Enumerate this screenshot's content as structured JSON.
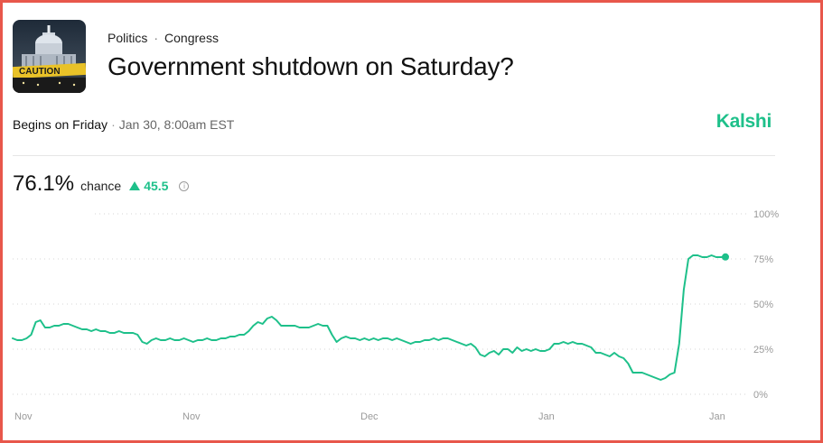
{
  "header": {
    "thumbnail_icon": "capitol-caution-image",
    "thumbnail_caption": "CAUTION",
    "breadcrumb": [
      "Politics",
      "Congress"
    ],
    "breadcrumb_separator": "·",
    "title": "Government shutdown on Saturday?"
  },
  "meta": {
    "begins": "Begins on Friday",
    "separator": "·",
    "date": "Jan 30, 8:00am EST"
  },
  "brand": {
    "name": "Kalshi",
    "color": "#1ec08a"
  },
  "stat": {
    "value": "76.1%",
    "label": "chance",
    "delta": "45.5",
    "delta_direction": "up",
    "info_icon": "info-circle-icon"
  },
  "chart_data": {
    "type": "line",
    "series": [
      {
        "color": "#1ec08a",
        "values": [
          31,
          30,
          30,
          31,
          33,
          40,
          41,
          37,
          37,
          38,
          38,
          39,
          39,
          38,
          37,
          36,
          36,
          35,
          36,
          35,
          35,
          34,
          34,
          35,
          34,
          34,
          34,
          33,
          29,
          28,
          30,
          31,
          30,
          30,
          31,
          30,
          30,
          31,
          30,
          29,
          30,
          30,
          31,
          30,
          30,
          31,
          31,
          32,
          32,
          33,
          33,
          35,
          38,
          40,
          39,
          42,
          43,
          41,
          38,
          38,
          38,
          38,
          37,
          37,
          37,
          38,
          39,
          38,
          38,
          33,
          29,
          31,
          32,
          31,
          31,
          30,
          31,
          30,
          31,
          30,
          31,
          31,
          30,
          31,
          30,
          29,
          28,
          29,
          29,
          30,
          30,
          31,
          30,
          31,
          31,
          30,
          29,
          28,
          27,
          28,
          26,
          22,
          21,
          23,
          24,
          22,
          25,
          25,
          23,
          26,
          24,
          25,
          24,
          25,
          24,
          24,
          25,
          28,
          28,
          29,
          28,
          29,
          28,
          28,
          27,
          26,
          23,
          23,
          22,
          21,
          23,
          21,
          20,
          17,
          12,
          12,
          12,
          11,
          10,
          9,
          8,
          9,
          11,
          12,
          28,
          58,
          75,
          77,
          77,
          76,
          76,
          77,
          76,
          76,
          76.1
        ]
      }
    ],
    "ylim": [
      0,
      100
    ],
    "y_ticks": [
      "100%",
      "75%",
      "50%",
      "25%",
      "0%"
    ],
    "x_ticks": [
      "Nov",
      "Nov",
      "Dec",
      "Jan",
      "Jan"
    ],
    "grid": "dotted horizontal",
    "end_marker": true
  }
}
